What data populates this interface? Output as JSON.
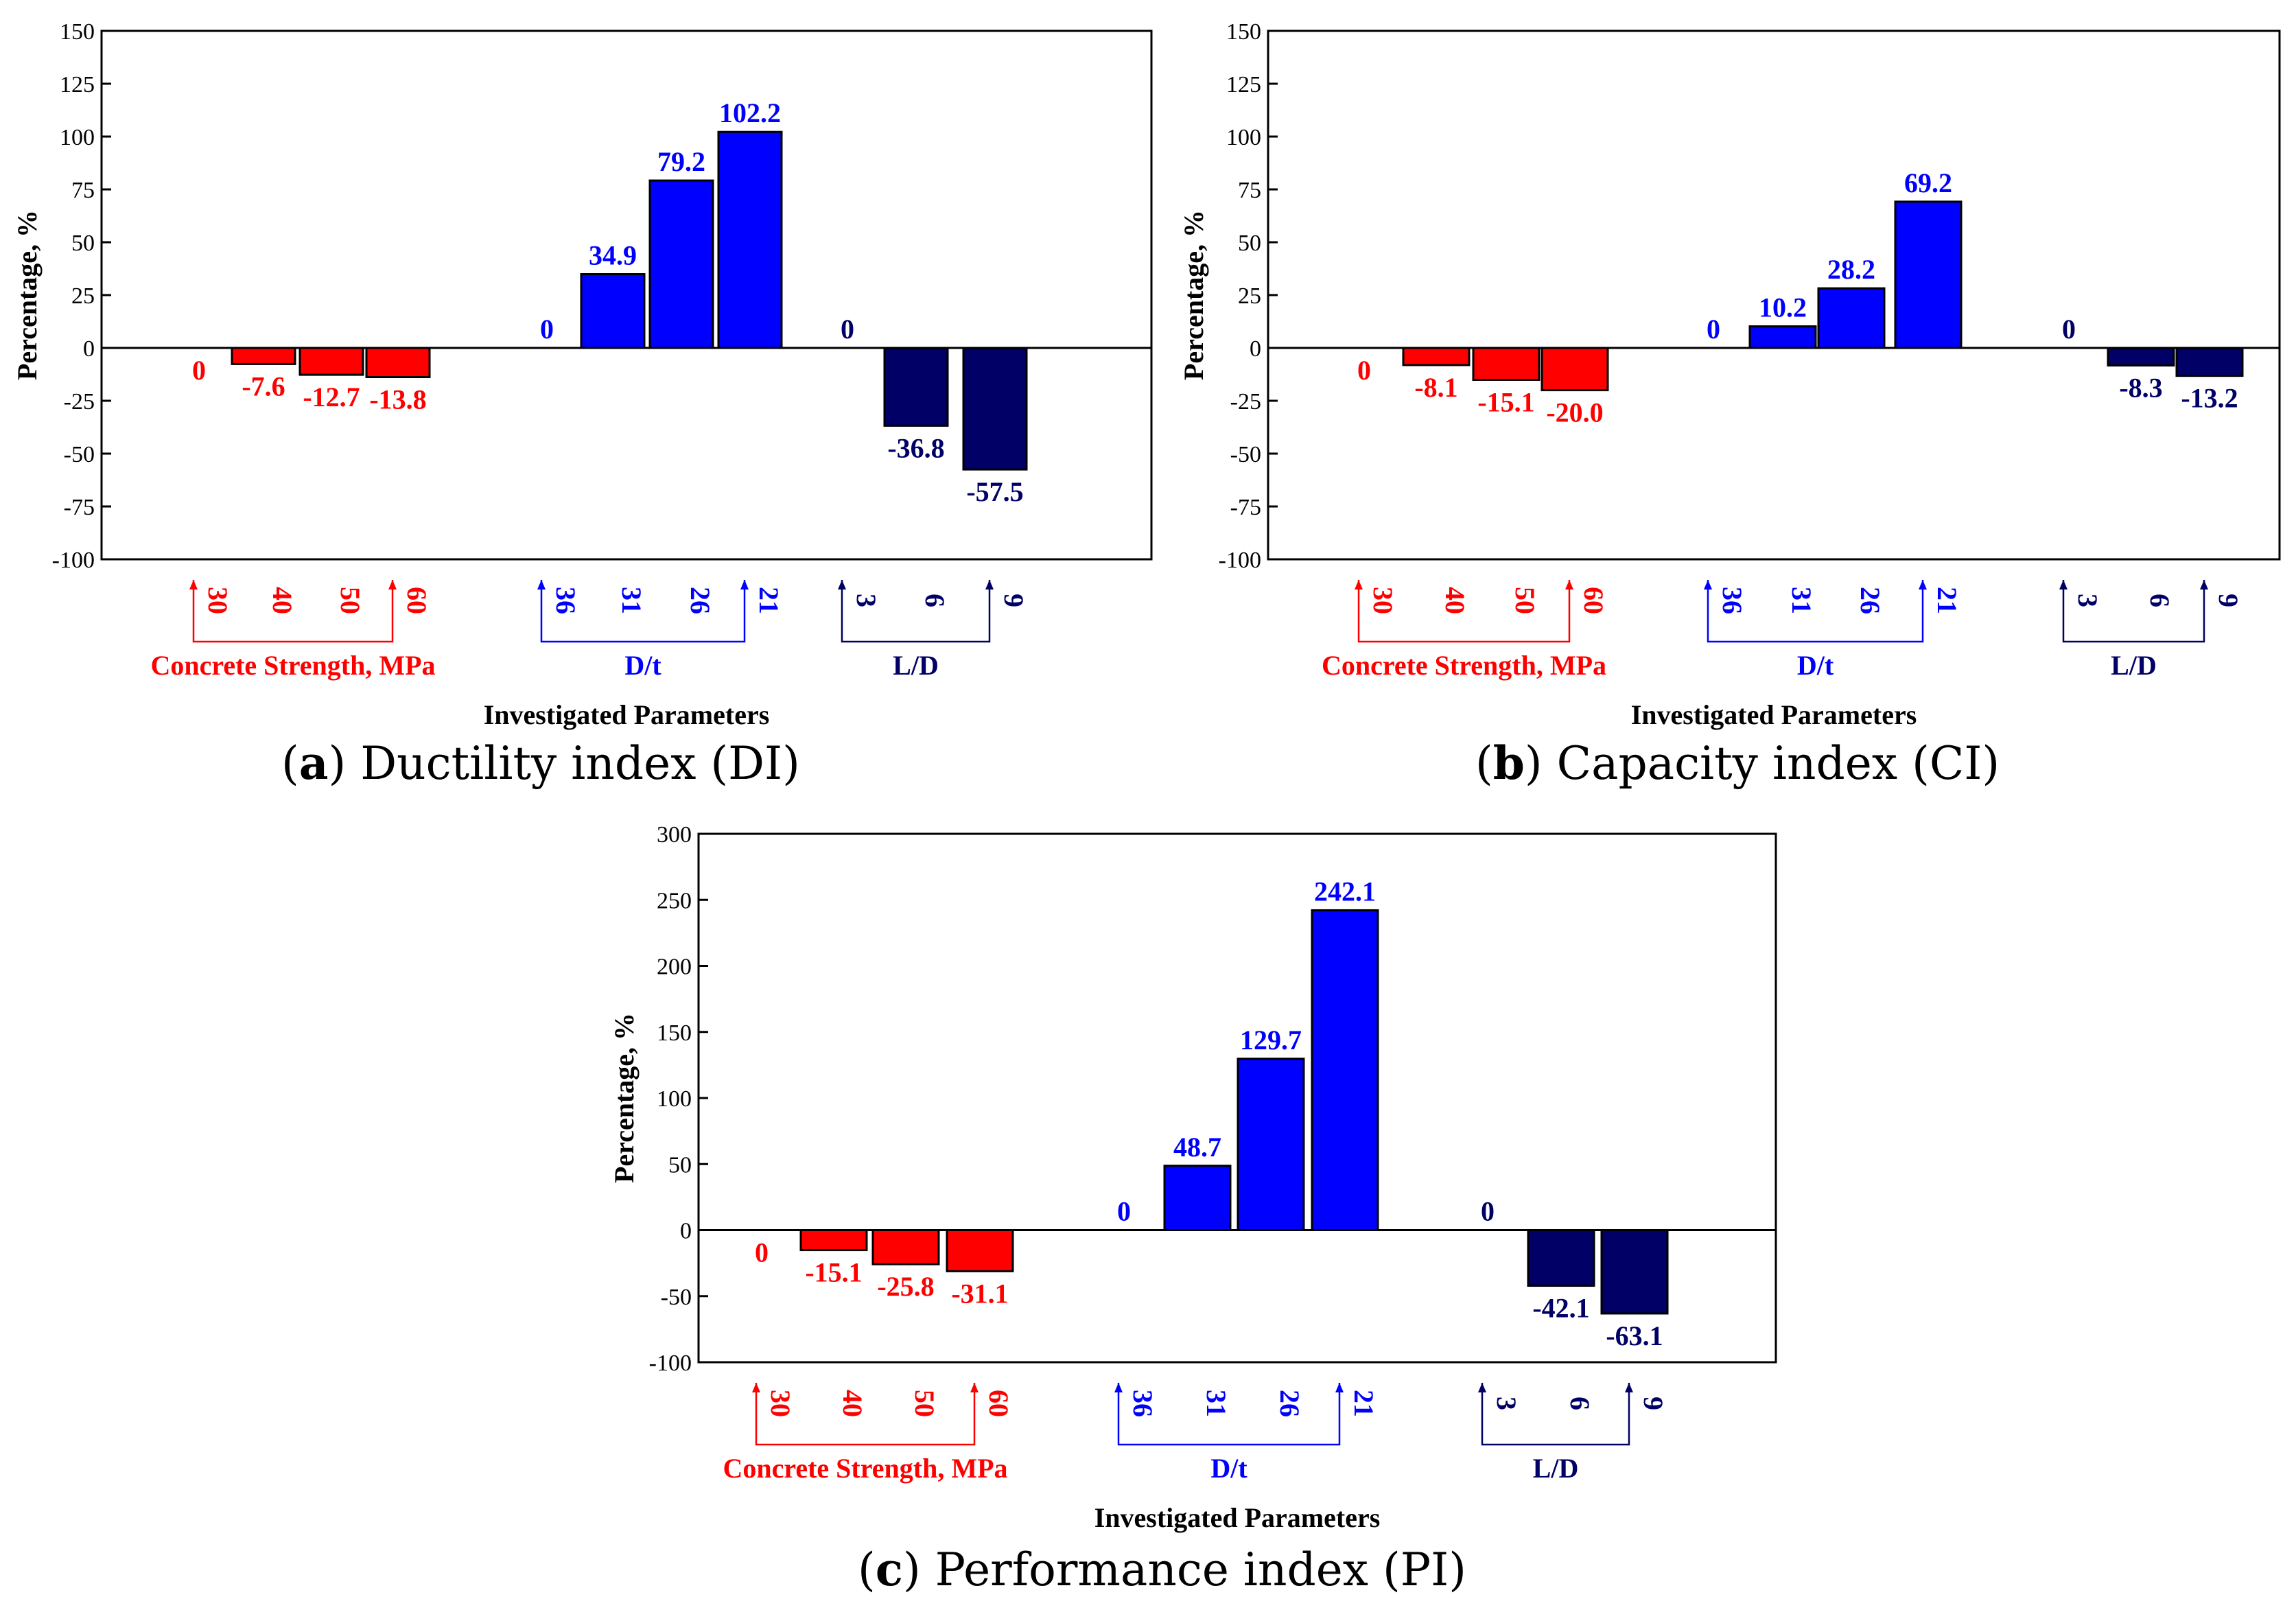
{
  "colors": {
    "concrete": "#ff0000",
    "dt": "#0000ff",
    "ld": "#000066",
    "dt_text": "#0000ff",
    "ld_text": "#000066"
  },
  "chart_data": [
    {
      "type": "bar",
      "letter": "a",
      "title": "Ductility index (DI)",
      "xlabel": "Investigated Parameters",
      "ylabel": "Percentage, %",
      "ylim": [
        -100,
        150
      ],
      "yticks": [
        -100,
        -75,
        -50,
        -25,
        0,
        25,
        50,
        75,
        100,
        125,
        150
      ],
      "grid": false,
      "groups": [
        {
          "name": "Concrete Strength, MPa",
          "color_key": "concrete",
          "categories": [
            "30",
            "40",
            "50",
            "60"
          ],
          "values": [
            0,
            -7.6,
            -12.7,
            -13.8
          ],
          "labels": [
            "0",
            "-7.6",
            "-12.7",
            "-13.8"
          ]
        },
        {
          "name": "D/t",
          "color_key": "dt",
          "categories": [
            "36",
            "31",
            "26",
            "21"
          ],
          "values": [
            0,
            34.9,
            79.2,
            102.2
          ],
          "labels": [
            "0",
            "34.9",
            "79.2",
            "102.2"
          ]
        },
        {
          "name": "L/D",
          "color_key": "ld",
          "categories": [
            "3",
            "6",
            "9"
          ],
          "values": [
            0,
            -36.8,
            -57.5
          ],
          "labels": [
            "0",
            "-36.8",
            "-57.5"
          ]
        }
      ]
    },
    {
      "type": "bar",
      "letter": "b",
      "title": "Capacity index (CI)",
      "xlabel": "Investigated Parameters",
      "ylabel": "Percentage, %",
      "ylim": [
        -100,
        150
      ],
      "yticks": [
        -100,
        -75,
        -50,
        -25,
        0,
        25,
        50,
        75,
        100,
        125,
        150
      ],
      "grid": false,
      "groups": [
        {
          "name": "Concrete Strength, MPa",
          "color_key": "concrete",
          "categories": [
            "30",
            "40",
            "50",
            "60"
          ],
          "values": [
            0,
            -8.1,
            -15.1,
            -20.0
          ],
          "labels": [
            "0",
            "-8.1",
            "-15.1",
            "-20.0"
          ]
        },
        {
          "name": "D/t",
          "color_key": "dt",
          "categories": [
            "36",
            "31",
            "26",
            "21"
          ],
          "values": [
            0,
            10.2,
            28.2,
            69.2
          ],
          "labels": [
            "0",
            "10.2",
            "28.2",
            "69.2"
          ]
        },
        {
          "name": "L/D",
          "color_key": "ld",
          "categories": [
            "3",
            "6",
            "9"
          ],
          "values": [
            0,
            -8.3,
            -13.2
          ],
          "labels": [
            "0",
            "-8.3",
            "-13.2"
          ]
        }
      ]
    },
    {
      "type": "bar",
      "letter": "c",
      "title": "Performance index (PI)",
      "xlabel": "Investigated Parameters",
      "ylabel": "Percentage, %",
      "ylim": [
        -100,
        300
      ],
      "yticks": [
        -100,
        -50,
        0,
        50,
        100,
        150,
        200,
        250,
        300
      ],
      "grid": false,
      "groups": [
        {
          "name": "Concrete Strength, MPa",
          "color_key": "concrete",
          "categories": [
            "30",
            "40",
            "50",
            "60"
          ],
          "values": [
            0,
            -15.1,
            -25.8,
            -31.1
          ],
          "labels": [
            "0",
            "-15.1",
            "-25.8",
            "-31.1"
          ]
        },
        {
          "name": "D/t",
          "color_key": "dt",
          "categories": [
            "36",
            "31",
            "26",
            "21"
          ],
          "values": [
            0,
            48.7,
            129.7,
            242.1
          ],
          "labels": [
            "0",
            "48.7",
            "129.7",
            "242.1"
          ]
        },
        {
          "name": "L/D",
          "color_key": "ld",
          "categories": [
            "3",
            "6",
            "9"
          ],
          "values": [
            0,
            -42.1,
            -63.1
          ],
          "labels": [
            "0",
            "-42.1",
            "-63.1"
          ]
        }
      ]
    }
  ]
}
